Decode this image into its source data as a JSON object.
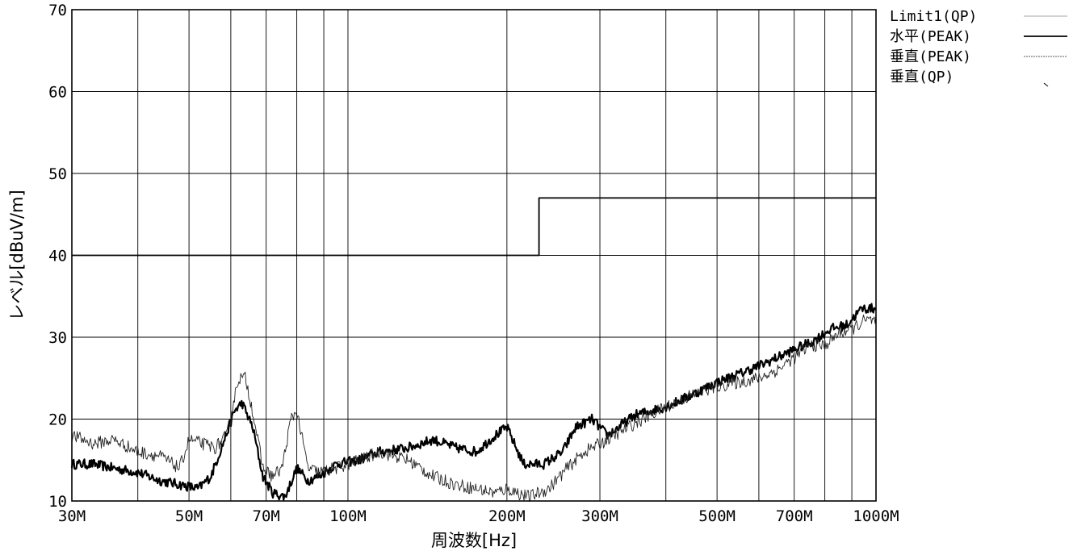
{
  "chart_data": {
    "type": "line",
    "title": "",
    "xlabel": "周波数[Hz]",
    "ylabel": "レベル[dBuV/m]",
    "x_scale": "log",
    "xlim": [
      30,
      1000
    ],
    "ylim": [
      10,
      70
    ],
    "x_unit": "MHz",
    "grid": true,
    "legend_placement": "right",
    "y_ticks": [
      {
        "value": 10,
        "label": "10"
      },
      {
        "value": 20,
        "label": "20"
      },
      {
        "value": 30,
        "label": "30"
      },
      {
        "value": 40,
        "label": "40"
      },
      {
        "value": 50,
        "label": "50"
      },
      {
        "value": 60,
        "label": "60"
      },
      {
        "value": 70,
        "label": "70"
      }
    ],
    "x_ticks": [
      {
        "value": 30,
        "label": "30M"
      },
      {
        "value": 50,
        "label": "50M"
      },
      {
        "value": 70,
        "label": "70M"
      },
      {
        "value": 100,
        "label": "100M"
      },
      {
        "value": 200,
        "label": "200M"
      },
      {
        "value": 300,
        "label": "300M"
      },
      {
        "value": 500,
        "label": "500M"
      },
      {
        "value": 700,
        "label": "700M"
      },
      {
        "value": 1000,
        "label": "1000M"
      }
    ],
    "x_grid": [
      30,
      40,
      50,
      60,
      70,
      80,
      90,
      100,
      200,
      300,
      400,
      500,
      600,
      700,
      800,
      900,
      1000
    ],
    "series": [
      {
        "name": "Limit1(QP)",
        "style": "step-limit",
        "x": [
          30,
          230,
          230,
          1000
        ],
        "y": [
          40,
          40,
          47,
          47
        ]
      },
      {
        "name": "水平(PEAK)",
        "style": "thick",
        "x": [
          30,
          33,
          36,
          40,
          44,
          48,
          52,
          55,
          58,
          61,
          63,
          66,
          69,
          72,
          76,
          80,
          84,
          88,
          95,
          105,
          115,
          130,
          145,
          160,
          175,
          190,
          200,
          215,
          235,
          255,
          270,
          290,
          310,
          350,
          400,
          450,
          500,
          550,
          600,
          650,
          700,
          760,
          820,
          880,
          940,
          1000
        ],
        "y": [
          14.5,
          14.5,
          14,
          13.5,
          12.5,
          12,
          11.5,
          13,
          17,
          21,
          22,
          19,
          13,
          11,
          10.5,
          14,
          12.5,
          13,
          14.5,
          15,
          16,
          16.5,
          17.5,
          16.5,
          16,
          18,
          19,
          14.5,
          14.5,
          16,
          19,
          20,
          18,
          20.5,
          21.5,
          23,
          24.5,
          25.5,
          26.5,
          27.5,
          28.5,
          29.5,
          31,
          31.5,
          33.5,
          33.5
        ]
      },
      {
        "name": "垂直(PEAK)",
        "style": "thin",
        "x": [
          30,
          33,
          36,
          40,
          44,
          48,
          50,
          53,
          56,
          59,
          62,
          64,
          66,
          69,
          72,
          75,
          78,
          80,
          84,
          88,
          95,
          105,
          115,
          130,
          145,
          160,
          175,
          190,
          200,
          220,
          240,
          260,
          280,
          300,
          350,
          400,
          450,
          500,
          550,
          600,
          650,
          700,
          750,
          800,
          850,
          900,
          950,
          1000
        ],
        "y": [
          18,
          17,
          17.5,
          16,
          15.5,
          14,
          17.5,
          17,
          16.5,
          18,
          25,
          25,
          21,
          14,
          13,
          14,
          20,
          21,
          14,
          13.5,
          14,
          15,
          16,
          15,
          13,
          12,
          11.5,
          11,
          11.5,
          10.5,
          11.5,
          14,
          16,
          17,
          19.5,
          21.5,
          23,
          24,
          24.5,
          25,
          26,
          27.5,
          29,
          29,
          30.5,
          31,
          32,
          32
        ]
      },
      {
        "name": "垂直(QP)",
        "style": "point",
        "x": [],
        "y": []
      }
    ]
  }
}
